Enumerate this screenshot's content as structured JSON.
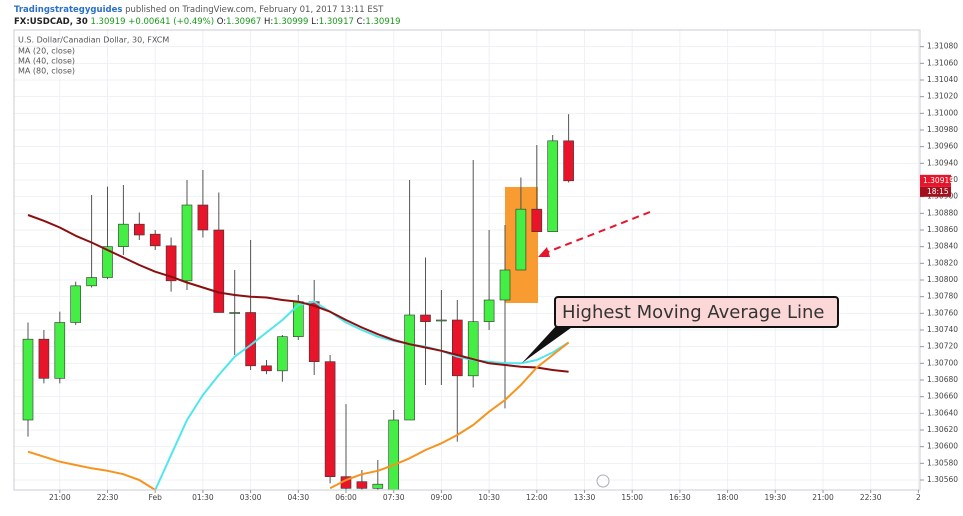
{
  "header": {
    "author": "Tradingstrategyguides",
    "published": " published on TradingView.com, February 01, 2017 13:11 EST",
    "symbol": "FX:USDCAD, 30",
    "last": "1.30919",
    "change": "+0.00641 (+0.49%)",
    "ohlc": [
      {
        "label": "O:",
        "value": "1.30967"
      },
      {
        "label": "H:",
        "value": "1.30999"
      },
      {
        "label": "L:",
        "value": "1.30917"
      },
      {
        "label": "C:",
        "value": "1.30919"
      }
    ]
  },
  "chart_data": {
    "type": "candlestick",
    "instrument": "U.S. Dollar/Canadian Dollar, 30, FXCM",
    "annotation": "Highest Moving Average Line",
    "countdown": "18:15",
    "grid": true,
    "up_color": "#44ee44",
    "down_color": "#e8142a",
    "categories": [
      null,
      null,
      "21:00",
      null,
      null,
      "22:30",
      null,
      null,
      "Feb",
      null,
      null,
      "01:30",
      null,
      null,
      "03:00",
      null,
      null,
      "04:30",
      null,
      null,
      "06:00",
      null,
      null,
      "07:30",
      null,
      null,
      "09:00",
      null,
      null,
      "10:30",
      null,
      null,
      "12:00",
      null,
      null,
      "13:30",
      null,
      null,
      "15:00",
      null,
      null,
      "16:30",
      null,
      null,
      "18:00",
      null,
      null,
      "19:30",
      null,
      null,
      "21:00",
      null,
      null,
      "22:30",
      null,
      null,
      "2"
    ],
    "ohlc": {
      "open": [
        1.30632,
        1.30729,
        1.30682,
        1.30749,
        1.30793,
        1.30803,
        1.3084,
        1.30867,
        1.30855,
        1.30841,
        1.30799,
        1.3089,
        1.3086,
        1.30761,
        1.30761,
        1.30697,
        1.30691,
        1.30732,
        1.30774,
        1.30702,
        1.30564,
        1.30558,
        1.3055,
        1.30548,
        1.30632,
        1.30758,
        1.30752,
        1.30752,
        1.30685,
        1.3075,
        1.30776,
        1.30812,
        1.30885,
        1.30858,
        1.30967,
        null,
        null,
        null,
        null,
        null,
        null,
        null,
        null,
        null,
        null,
        null,
        null,
        null,
        null,
        null,
        null,
        null,
        null,
        null,
        null,
        null,
        null
      ],
      "high": [
        1.30749,
        1.3074,
        1.30762,
        1.30798,
        1.30902,
        1.30912,
        1.30914,
        1.30881,
        1.3086,
        1.30851,
        1.3092,
        1.30932,
        1.30905,
        1.30812,
        1.30848,
        1.30704,
        1.30734,
        1.30782,
        1.308,
        1.3071,
        1.30651,
        1.30572,
        1.30584,
        1.30644,
        1.3092,
        1.30827,
        1.30788,
        1.30776,
        1.30944,
        1.3086,
        1.30866,
        1.30923,
        1.30962,
        1.30974,
        1.30999,
        null,
        null,
        null,
        null,
        null,
        null,
        null,
        null,
        null,
        null,
        null,
        null,
        null,
        null,
        null,
        null,
        null,
        null,
        null,
        null,
        null,
        null
      ],
      "low": [
        1.30612,
        1.30676,
        1.30676,
        1.30746,
        1.30791,
        1.30801,
        1.3083,
        1.30848,
        1.30836,
        1.30786,
        1.30788,
        1.30851,
        1.30761,
        1.3071,
        1.30692,
        1.30687,
        1.30678,
        1.30728,
        1.30686,
        1.30556,
        1.30548,
        1.30548,
        1.30548,
        1.30548,
        1.30632,
        1.30674,
        1.30674,
        1.30606,
        1.30671,
        1.3074,
        1.30646,
        1.30812,
        1.30858,
        1.30858,
        1.30917,
        null,
        null,
        null,
        null,
        null,
        null,
        null,
        null,
        null,
        null,
        null,
        null,
        null,
        null,
        null,
        null,
        null,
        null,
        null,
        null,
        null,
        null
      ],
      "close": [
        1.30729,
        1.30682,
        1.30749,
        1.30793,
        1.30803,
        1.3084,
        1.30867,
        1.30854,
        1.30841,
        1.30799,
        1.3089,
        1.3086,
        1.30761,
        1.30761,
        1.30697,
        1.30691,
        1.30732,
        1.30774,
        1.30702,
        1.30564,
        1.3055,
        1.3055,
        1.30555,
        1.30632,
        1.30758,
        1.3075,
        1.30752,
        1.30685,
        1.3075,
        1.30776,
        1.30812,
        1.30885,
        1.30858,
        1.30967,
        1.30919,
        null,
        null,
        null,
        null,
        null,
        null,
        null,
        null,
        null,
        null,
        null,
        null,
        null,
        null,
        null,
        null,
        null,
        null,
        null,
        null,
        null,
        null
      ]
    },
    "series": [
      {
        "name": "MA (20, close)",
        "color": "#4fe6ee",
        "values": [
          null,
          null,
          null,
          null,
          null,
          null,
          null,
          null,
          1.30548,
          1.3059,
          1.30632,
          1.30662,
          1.30686,
          1.30708,
          1.30722,
          1.30737,
          1.30752,
          1.3077,
          1.30774,
          1.30762,
          1.30749,
          1.3074,
          1.30732,
          1.30727,
          1.30723,
          1.3072,
          1.30715,
          1.30708,
          1.30704,
          1.30702,
          1.307,
          1.307,
          1.30704,
          1.30713,
          1.30725,
          null,
          null,
          null,
          null,
          null,
          null,
          null,
          null,
          null,
          null,
          null,
          null,
          null,
          null,
          null,
          null,
          null,
          null,
          null,
          null,
          null,
          null
        ]
      },
      {
        "name": "MA (40, close)",
        "color": "#8b0f0f",
        "values": [
          1.30878,
          1.30871,
          1.30863,
          1.30853,
          1.30845,
          1.30836,
          1.30827,
          1.30818,
          1.3081,
          1.30804,
          1.30797,
          1.30791,
          1.30785,
          1.30782,
          1.3078,
          1.30779,
          1.30776,
          1.30774,
          1.30769,
          1.30762,
          1.30752,
          1.30743,
          1.30735,
          1.30728,
          1.30723,
          1.30719,
          1.30715,
          1.3071,
          1.30705,
          1.307,
          1.30698,
          1.30696,
          1.30695,
          1.30692,
          1.3069,
          null,
          null,
          null,
          null,
          null,
          null,
          null,
          null,
          null,
          null,
          null,
          null,
          null,
          null,
          null,
          null,
          null,
          null,
          null,
          null,
          null,
          null
        ]
      },
      {
        "name": "MA (80, close)",
        "color": "#f7931e",
        "values": [
          1.30594,
          1.30588,
          1.30582,
          1.30578,
          1.30574,
          1.30571,
          1.30567,
          1.3056,
          1.30548,
          null,
          null,
          null,
          null,
          null,
          null,
          null,
          null,
          null,
          null,
          1.3055,
          1.3056,
          1.30567,
          1.30571,
          1.30578,
          1.30586,
          1.30596,
          1.30604,
          1.30614,
          1.30626,
          1.30642,
          1.30656,
          1.30674,
          1.30695,
          1.3071,
          1.30725,
          null,
          null,
          null,
          null,
          null,
          null,
          null,
          null,
          null,
          null,
          null,
          null,
          null,
          null,
          null,
          null,
          null,
          null,
          null,
          null,
          null,
          null
        ]
      }
    ],
    "ylim": [
      1.30548,
      1.311
    ],
    "yticks": [
      {
        "value": 1.3056,
        "label": "1.30560"
      },
      {
        "value": 1.3058,
        "label": "1.30580"
      },
      {
        "value": 1.306,
        "label": "1.30600"
      },
      {
        "value": 1.3062,
        "label": "1.30620"
      },
      {
        "value": 1.3064,
        "label": "1.30640"
      },
      {
        "value": 1.3066,
        "label": "1.30660"
      },
      {
        "value": 1.3068,
        "label": "1.30680"
      },
      {
        "value": 1.307,
        "label": "1.30700"
      },
      {
        "value": 1.3072,
        "label": "1.30720"
      },
      {
        "value": 1.3074,
        "label": "1.30740"
      },
      {
        "value": 1.3076,
        "label": "1.30760"
      },
      {
        "value": 1.3078,
        "label": "1.30780"
      },
      {
        "value": 1.308,
        "label": "1.30800"
      },
      {
        "value": 1.3082,
        "label": "1.30820"
      },
      {
        "value": 1.3084,
        "label": "1.30840"
      },
      {
        "value": 1.3086,
        "label": "1.30860"
      },
      {
        "value": 1.3088,
        "label": "1.30880"
      },
      {
        "value": 1.309,
        "label": "1.30900"
      },
      {
        "value": 1.3092,
        "label": "1.30920"
      },
      {
        "value": 1.3094,
        "label": "1.30940"
      },
      {
        "value": 1.3096,
        "label": "1.30960"
      },
      {
        "value": 1.3098,
        "label": "1.30980"
      },
      {
        "value": 1.31,
        "label": "1.31000"
      },
      {
        "value": 1.3102,
        "label": "1.31020"
      },
      {
        "value": 1.3104,
        "label": "1.31040"
      },
      {
        "value": 1.3106,
        "label": "1.31060"
      },
      {
        "value": 1.3108,
        "label": "1.31080"
      }
    ]
  }
}
